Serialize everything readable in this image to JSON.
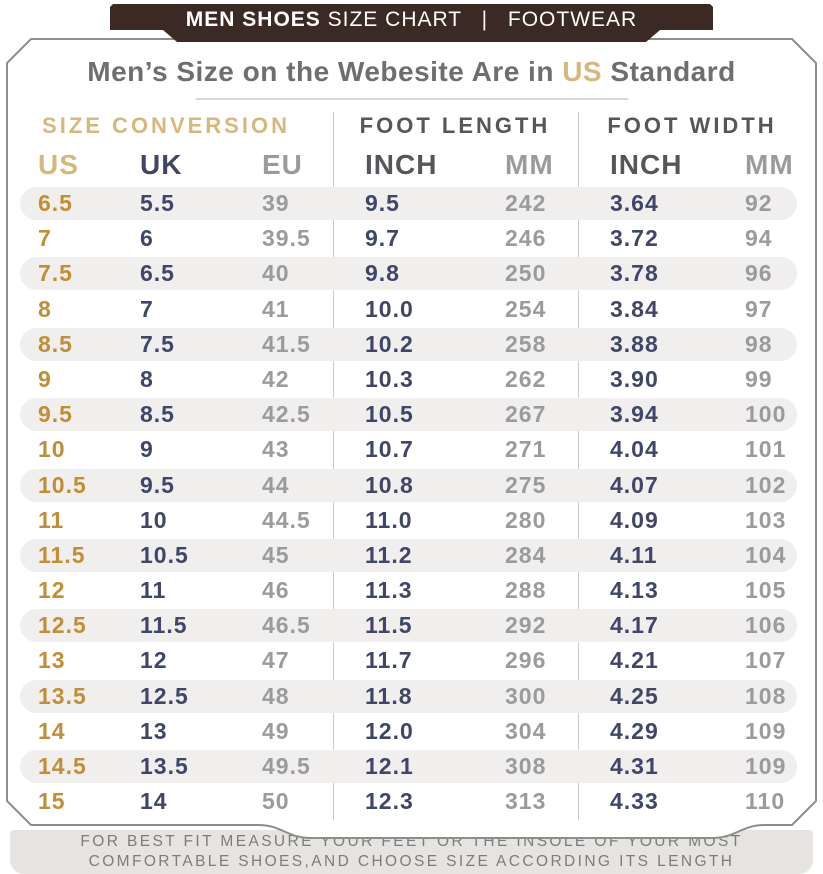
{
  "top_bar": {
    "title_bold": "MEN SHOES",
    "title_rest": "SIZE CHART",
    "separator": "|",
    "category": "FOOTWEAR"
  },
  "title": {
    "prefix": "Men’s Size on the Webesite Are in ",
    "highlight": "US",
    "suffix": " Standard"
  },
  "table": {
    "section_labels": [
      "SIZE CONVERSION",
      "FOOT LENGTH",
      "FOOT WIDTH"
    ],
    "column_labels": [
      "US",
      "UK",
      "EU",
      "INCH",
      "MM",
      "INCH",
      "MM"
    ]
  },
  "footer": {
    "line1": "FOR BEST FIT MEASURE YOUR FEET OR THE INSOLE OF YOUR MOST",
    "line2": "COMFORTABLE SHOES,AND CHOOSE SIZE ACCORDING ITS LENGTH"
  },
  "colors": {
    "brown_bar": "#3a2a23",
    "tan_accent": "#d6b77c",
    "amber_us": "#c28e33",
    "navy": "#3f4667",
    "slate_header": "#55565a",
    "gray_values": "#9b9b9d",
    "stripe": "#f0efee",
    "footer_bg": "#e6e4e1"
  },
  "chart_data": {
    "type": "table",
    "title": "Men’s Size on the Webesite Are in US Standard",
    "sections": [
      "SIZE CONVERSION",
      "FOOT LENGTH",
      "FOOT WIDTH"
    ],
    "columns": [
      "US",
      "UK",
      "EU",
      "FOOT LENGTH INCH",
      "FOOT LENGTH MM",
      "FOOT WIDTH INCH",
      "FOOT WIDTH MM"
    ],
    "rows": [
      [
        "6.5",
        "5.5",
        "39",
        "9.5",
        "242",
        "3.64",
        "92"
      ],
      [
        "7",
        "6",
        "39.5",
        "9.7",
        "246",
        "3.72",
        "94"
      ],
      [
        "7.5",
        "6.5",
        "40",
        "9.8",
        "250",
        "3.78",
        "96"
      ],
      [
        "8",
        "7",
        "41",
        "10.0",
        "254",
        "3.84",
        "97"
      ],
      [
        "8.5",
        "7.5",
        "41.5",
        "10.2",
        "258",
        "3.88",
        "98"
      ],
      [
        "9",
        "8",
        "42",
        "10.3",
        "262",
        "3.90",
        "99"
      ],
      [
        "9.5",
        "8.5",
        "42.5",
        "10.5",
        "267",
        "3.94",
        "100"
      ],
      [
        "10",
        "9",
        "43",
        "10.7",
        "271",
        "4.04",
        "101"
      ],
      [
        "10.5",
        "9.5",
        "44",
        "10.8",
        "275",
        "4.07",
        "102"
      ],
      [
        "11",
        "10",
        "44.5",
        "11.0",
        "280",
        "4.09",
        "103"
      ],
      [
        "11.5",
        "10.5",
        "45",
        "11.2",
        "284",
        "4.11",
        "104"
      ],
      [
        "12",
        "11",
        "46",
        "11.3",
        "288",
        "4.13",
        "105"
      ],
      [
        "12.5",
        "11.5",
        "46.5",
        "11.5",
        "292",
        "4.17",
        "106"
      ],
      [
        "13",
        "12",
        "47",
        "11.7",
        "296",
        "4.21",
        "107"
      ],
      [
        "13.5",
        "12.5",
        "48",
        "11.8",
        "300",
        "4.25",
        "108"
      ],
      [
        "14",
        "13",
        "49",
        "12.0",
        "304",
        "4.29",
        "109"
      ],
      [
        "14.5",
        "13.5",
        "49.5",
        "12.1",
        "308",
        "4.31",
        "109"
      ],
      [
        "15",
        "14",
        "50",
        "12.3",
        "313",
        "4.33",
        "110"
      ]
    ]
  }
}
